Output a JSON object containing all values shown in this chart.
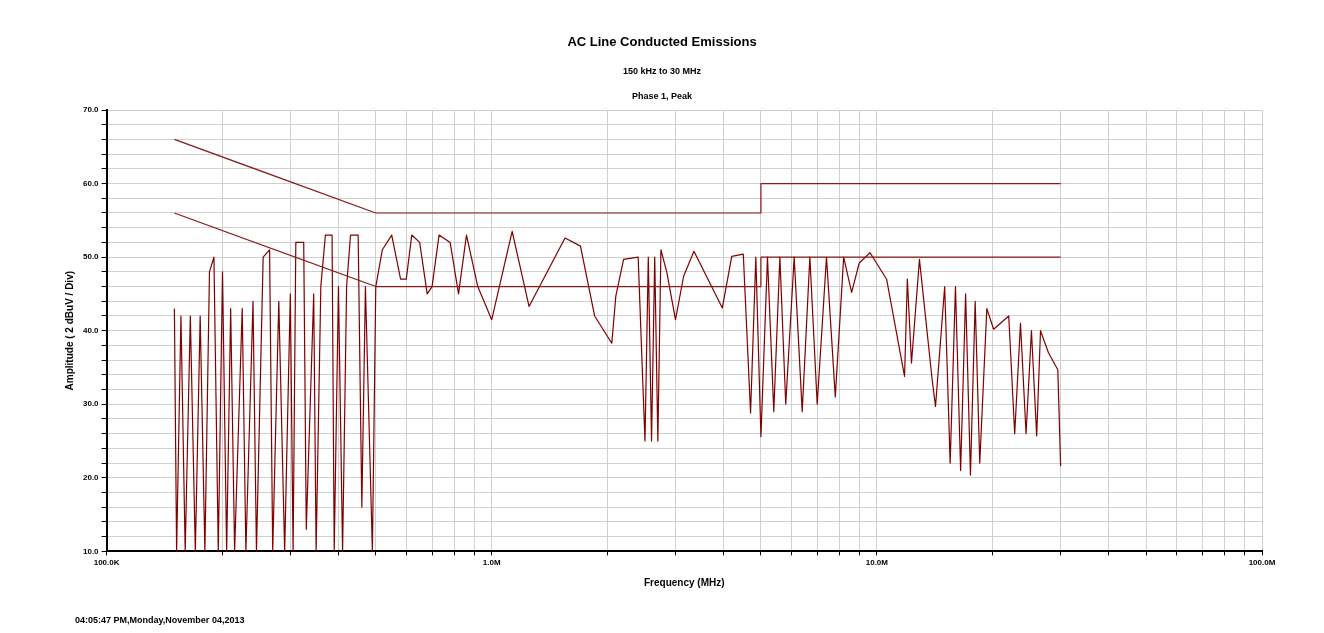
{
  "chart_data": {
    "type": "line",
    "title": "AC Line Conducted Emissions",
    "subtitle": "150 kHz to 30 MHz",
    "xlabel": "Frequency (MHz)",
    "ylabel": "Amplitude ( 2 dBuV / Div)",
    "annotations": [
      "Phase 1, Peak",
      "04:05:47 PM,Monday,November 04,2013"
    ],
    "log": "x",
    "grid": true,
    "marker": "none",
    "xlim": [
      100000,
      100000000
    ],
    "xticks": [
      {
        "value": 100000,
        "label": "100.0K"
      },
      {
        "value": 200000,
        "label": null
      },
      {
        "value": 300000,
        "label": null
      },
      {
        "value": 400000,
        "label": null
      },
      {
        "value": 500000,
        "label": null
      },
      {
        "value": 600000,
        "label": null
      },
      {
        "value": 700000,
        "label": null
      },
      {
        "value": 800000,
        "label": null
      },
      {
        "value": 900000,
        "label": null
      },
      {
        "value": 1000000,
        "label": "1.0M"
      },
      {
        "value": 2000000,
        "label": null
      },
      {
        "value": 3000000,
        "label": null
      },
      {
        "value": 4000000,
        "label": null
      },
      {
        "value": 5000000,
        "label": null
      },
      {
        "value": 6000000,
        "label": null
      },
      {
        "value": 7000000,
        "label": null
      },
      {
        "value": 8000000,
        "label": null
      },
      {
        "value": 9000000,
        "label": null
      },
      {
        "value": 10000000,
        "label": "10.0M"
      },
      {
        "value": 20000000,
        "label": null
      },
      {
        "value": 30000000,
        "label": null
      },
      {
        "value": 40000000,
        "label": null
      },
      {
        "value": 50000000,
        "label": null
      },
      {
        "value": 60000000,
        "label": null
      },
      {
        "value": 70000000,
        "label": null
      },
      {
        "value": 80000000,
        "label": null
      },
      {
        "value": 90000000,
        "label": null
      },
      {
        "value": 100000000,
        "label": "100.0M"
      }
    ],
    "ylim": [
      10,
      70
    ],
    "yticks": [
      {
        "value": 10,
        "label": "10.0"
      },
      {
        "value": 12,
        "label": null
      },
      {
        "value": 14,
        "label": null
      },
      {
        "value": 16,
        "label": null
      },
      {
        "value": 18,
        "label": null
      },
      {
        "value": 20,
        "label": "20.0"
      },
      {
        "value": 22,
        "label": null
      },
      {
        "value": 24,
        "label": null
      },
      {
        "value": 26,
        "label": null
      },
      {
        "value": 28,
        "label": null
      },
      {
        "value": 30,
        "label": "30.0"
      },
      {
        "value": 32,
        "label": null
      },
      {
        "value": 34,
        "label": null
      },
      {
        "value": 36,
        "label": null
      },
      {
        "value": 38,
        "label": null
      },
      {
        "value": 40,
        "label": "40.0"
      },
      {
        "value": 42,
        "label": null
      },
      {
        "value": 44,
        "label": null
      },
      {
        "value": 46,
        "label": null
      },
      {
        "value": 48,
        "label": null
      },
      {
        "value": 50,
        "label": "50.0"
      },
      {
        "value": 52,
        "label": null
      },
      {
        "value": 54,
        "label": null
      },
      {
        "value": 56,
        "label": null
      },
      {
        "value": 58,
        "label": null
      },
      {
        "value": 60,
        "label": "60.0"
      },
      {
        "value": 62,
        "label": null
      },
      {
        "value": 64,
        "label": null
      },
      {
        "value": 66,
        "label": null
      },
      {
        "value": 68,
        "label": null
      },
      {
        "value": 70,
        "label": "70.0"
      }
    ],
    "series": [
      {
        "type": "line",
        "color": "#8b1a1a",
        "x": [
          150000,
          500000,
          500000,
          5000000,
          5000000,
          30000000
        ],
        "values": [
          66,
          56,
          56,
          56,
          60,
          60
        ]
      },
      {
        "type": "line",
        "color": "#8b1a1a",
        "x": [
          150000,
          500000,
          500000,
          5000000,
          5000000,
          30000000
        ],
        "values": [
          56,
          46,
          46,
          46,
          50,
          50
        ]
      },
      {
        "type": "line",
        "color": "#800000",
        "x": [
          150000,
          152000,
          156000,
          160000,
          165000,
          170000,
          175000,
          180000,
          185000,
          190000,
          195000,
          200000,
          205000,
          210000,
          215000,
          225000,
          230000,
          240000,
          245000,
          255000,
          265000,
          270000,
          280000,
          290000,
          300000,
          305000,
          310000,
          325000,
          330000,
          345000,
          350000,
          360000,
          370000,
          385000,
          390000,
          400000,
          410000,
          420000,
          430000,
          450000,
          460000,
          470000,
          490000,
          500000,
          520000,
          550000,
          580000,
          600000,
          620000,
          650000,
          680000,
          700000,
          730000,
          780000,
          820000,
          860000,
          920000,
          1000000,
          1130000,
          1250000,
          1550000,
          1700000,
          1850000,
          2050000,
          2100000,
          2200000,
          2400000,
          2500000,
          2550000,
          2600000,
          2650000,
          2700000,
          2750000,
          2850000,
          3000000,
          3150000,
          3350000,
          3970000,
          4200000,
          4500000,
          4700000,
          4850000,
          5000000,
          5200000,
          5400000,
          5600000,
          5800000,
          6100000,
          6400000,
          6700000,
          7000000,
          7400000,
          7800000,
          8200000,
          8600000,
          9000000,
          9600000,
          10600000,
          11800000,
          12000000,
          12300000,
          12900000,
          13900000,
          14200000,
          15000000,
          15500000,
          16000000,
          16500000,
          17000000,
          17500000,
          18000000,
          18500000,
          19300000,
          20100000,
          22000000,
          22800000,
          23600000,
          24400000,
          25200000,
          26000000,
          26600000,
          27900000,
          29500000,
          30000000
        ],
        "values": [
          43,
          10,
          42,
          10,
          42,
          10,
          42,
          10,
          48,
          50,
          10,
          48,
          10,
          43,
          10,
          43,
          10,
          44,
          10,
          50,
          51,
          10,
          44,
          10,
          45,
          10,
          52,
          52,
          13,
          45,
          10,
          46,
          53,
          53,
          10,
          46,
          10,
          46,
          53,
          53,
          16,
          46,
          10,
          46,
          51,
          53,
          47,
          47,
          53,
          52,
          45,
          46,
          53,
          52,
          45,
          53,
          46,
          41.5,
          53.5,
          43.3,
          52.6,
          51.5,
          42,
          38.3,
          44.7,
          49.7,
          50,
          25,
          50,
          25,
          50,
          25,
          51,
          47.9,
          41.5,
          47.4,
          50.8,
          43.1,
          50.1,
          50.4,
          28.8,
          50,
          25.6,
          50,
          29,
          50,
          30,
          50,
          29,
          50,
          30,
          50,
          31,
          50,
          45.2,
          49.2,
          50.6,
          47,
          33.8,
          47,
          35.6,
          49.7,
          33.6,
          29.7,
          46,
          22,
          46,
          21,
          45,
          20.4,
          44,
          22,
          43,
          40.2,
          42,
          26,
          41,
          26,
          40,
          25.7,
          40,
          37,
          34.7,
          21.6
        ]
      }
    ]
  }
}
